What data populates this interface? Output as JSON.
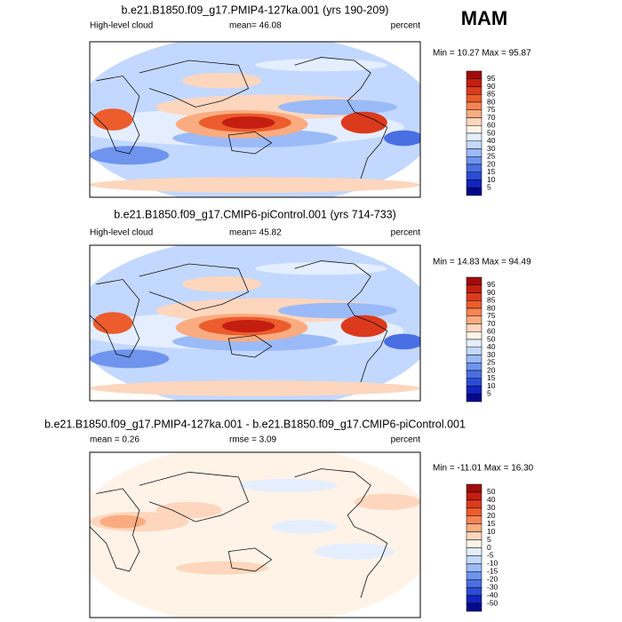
{
  "label": "MAM",
  "panels": [
    {
      "title": "b.e21.B1850.f09_g17.PMIP4-127ka.001 (yrs 190-209)",
      "left": "High-level cloud",
      "center": "mean=  46.08",
      "right": "percent",
      "minmax": "Min =  10.27 Max =  95.87",
      "colorbar": {
        "levels": [
          95,
          90,
          85,
          80,
          75,
          70,
          60,
          50,
          40,
          30,
          25,
          20,
          15,
          10,
          5
        ],
        "colors": [
          "#a00c0c",
          "#c41e10",
          "#dc3a1c",
          "#ec5c2c",
          "#f58555",
          "#faac80",
          "#fdd6bd",
          "#fff3e8",
          "#e4eeff",
          "#c3d8ff",
          "#9bbaf8",
          "#6e94ee",
          "#4a6fe2",
          "#2b4bd6",
          "#1024c0",
          "#000a8a"
        ]
      }
    },
    {
      "title": "b.e21.B1850.f09_g17.CMIP6-piControl.001 (yrs 714-733)",
      "left": "High-level cloud",
      "center": "mean=  45.82",
      "right": "percent",
      "minmax": "Min =  14.83 Max =  94.49",
      "colorbar": {
        "levels": [
          95,
          90,
          85,
          80,
          75,
          70,
          60,
          50,
          40,
          30,
          25,
          20,
          15,
          10,
          5
        ],
        "colors": [
          "#a00c0c",
          "#c41e10",
          "#dc3a1c",
          "#ec5c2c",
          "#f58555",
          "#faac80",
          "#fdd6bd",
          "#fff3e8",
          "#e4eeff",
          "#c3d8ff",
          "#9bbaf8",
          "#6e94ee",
          "#4a6fe2",
          "#2b4bd6",
          "#1024c0",
          "#000a8a"
        ]
      }
    },
    {
      "title": "b.e21.B1850.f09_g17.PMIP4-127ka.001 - b.e21.B1850.f09_g17.CMIP6-piControl.001",
      "left": "mean =   0.26",
      "center": "rmse =   3.09",
      "right": "percent",
      "minmax": "Min = -11.01 Max =  16.30",
      "colorbar": {
        "levels": [
          50,
          40,
          30,
          20,
          15,
          10,
          5,
          0,
          -5,
          -10,
          -15,
          -20,
          -30,
          -40,
          -50
        ],
        "colors": [
          "#a00c0c",
          "#c41e10",
          "#dc3a1c",
          "#ec5c2c",
          "#f58555",
          "#faac80",
          "#fdd6bd",
          "#fff3e8",
          "#e4eeff",
          "#c3d8ff",
          "#9bbaf8",
          "#6e94ee",
          "#4a6fe2",
          "#2b4bd6",
          "#1024c0",
          "#000a8a"
        ]
      }
    }
  ]
}
